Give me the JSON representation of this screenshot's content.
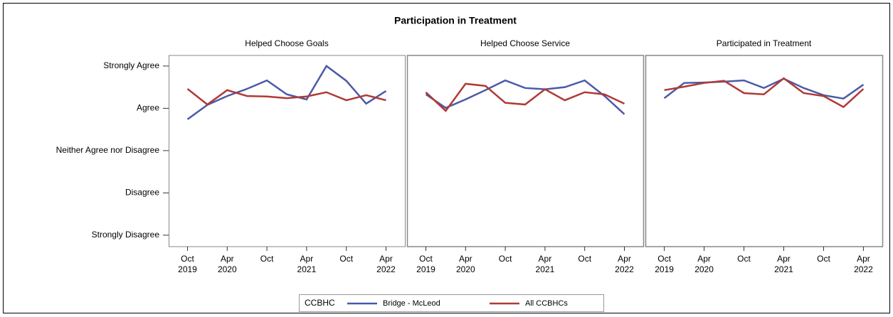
{
  "chart_data": {
    "type": "line",
    "title": "Participation in Treatment",
    "x": [
      "2019-10",
      "2020-01",
      "2020-04",
      "2020-07",
      "2020-10",
      "2021-01",
      "2021-04",
      "2021-07",
      "2021-10",
      "2022-01",
      "2022-04"
    ],
    "xticks": [
      {
        "value": "2019-10",
        "label": "Oct 2019"
      },
      {
        "value": "2020-04",
        "label": "Apr 2020"
      },
      {
        "value": "2020-10",
        "label": "Oct"
      },
      {
        "value": "2021-04",
        "label": "Apr 2021"
      },
      {
        "value": "2021-10",
        "label": "Oct"
      },
      {
        "value": "2022-04",
        "label": "Apr 2022"
      }
    ],
    "ylim": [
      0.73,
      5.25
    ],
    "yticks": [
      {
        "value": 5,
        "label": "Strongly Agree"
      },
      {
        "value": 4,
        "label": "Agree"
      },
      {
        "value": 3,
        "label": "Neither Agree nor Disagree"
      },
      {
        "value": 2,
        "label": "Disagree"
      },
      {
        "value": 1,
        "label": "Strongly Disagree"
      }
    ],
    "legend_title": "CCBHC",
    "series": [
      {
        "name": "Bridge - McLeod",
        "color": "#4a5aa8"
      },
      {
        "name": "All CCBHCs",
        "color": "#b03a36"
      }
    ],
    "panels": [
      {
        "title": "Helped Choose Goals",
        "values": [
          [
            3.74,
            4.08,
            4.29,
            4.46,
            4.66,
            4.33,
            4.21,
            5.0,
            4.65,
            4.11,
            4.41
          ],
          [
            4.46,
            4.09,
            4.43,
            4.29,
            4.28,
            4.24,
            4.28,
            4.38,
            4.19,
            4.31,
            4.19
          ]
        ]
      },
      {
        "title": "Helped Choose Service",
        "values": [
          [
            4.33,
            4.01,
            4.21,
            4.43,
            4.66,
            4.48,
            4.45,
            4.5,
            4.66,
            4.29,
            3.86
          ],
          [
            4.38,
            3.94,
            4.58,
            4.53,
            4.13,
            4.09,
            4.45,
            4.19,
            4.38,
            4.33,
            4.11
          ]
        ]
      },
      {
        "title": "Participated in Treatment",
        "values": [
          [
            4.24,
            4.6,
            4.61,
            4.63,
            4.66,
            4.48,
            4.7,
            4.48,
            4.31,
            4.23,
            4.56
          ],
          [
            4.43,
            4.51,
            4.6,
            4.65,
            4.36,
            4.33,
            4.71,
            4.36,
            4.29,
            4.03,
            4.46
          ]
        ]
      }
    ]
  }
}
